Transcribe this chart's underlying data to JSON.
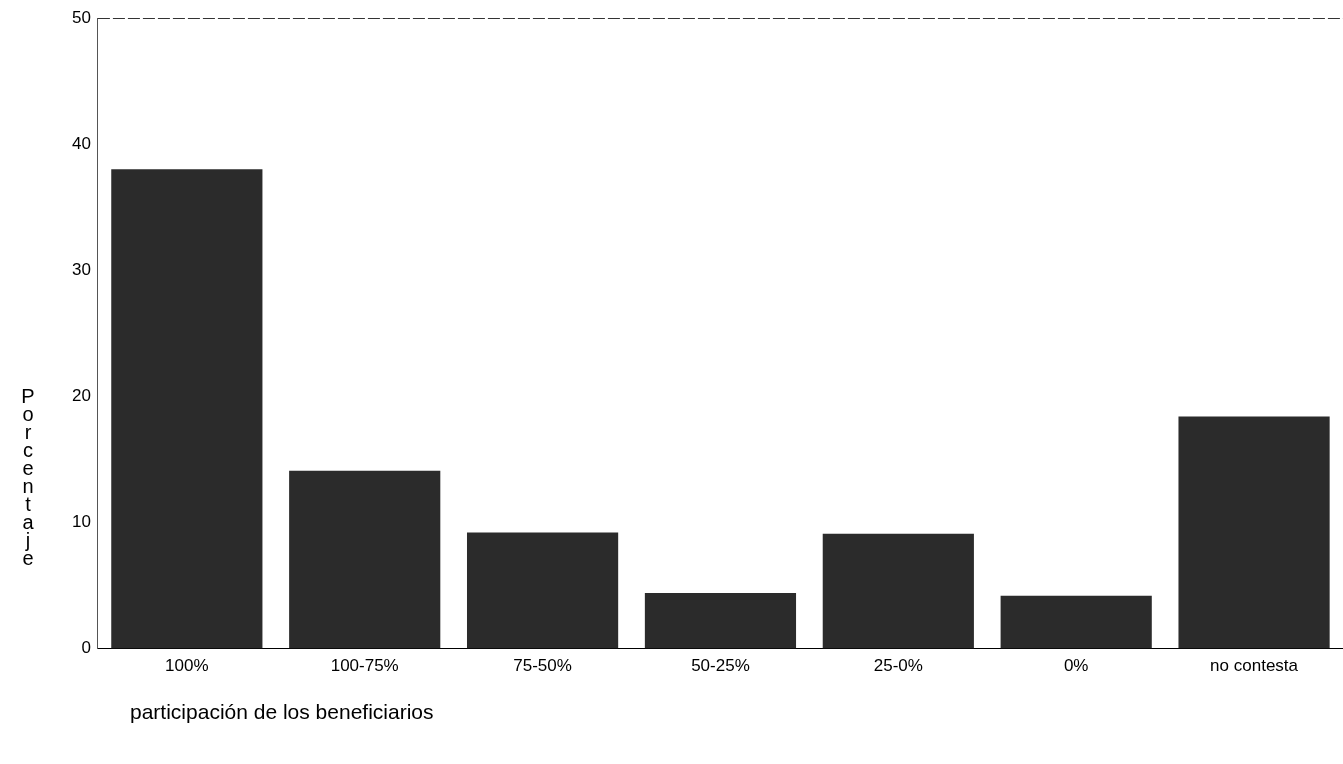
{
  "chart_data": {
    "type": "bar",
    "xlabel": "participación de los beneficiarios",
    "ylabel": "Porcentaje",
    "categories": [
      "100%",
      "100-75%",
      "75-50%",
      "50-25%",
      "25-0%",
      "0%",
      "no contesta"
    ],
    "values": [
      38.0,
      14.1,
      9.2,
      4.4,
      9.1,
      4.2,
      18.4
    ],
    "color": "#2b2b2b",
    "ylim": [
      0,
      50
    ],
    "yticks": [
      0,
      10,
      20,
      30,
      40,
      50
    ],
    "grid": false,
    "legend": false
  }
}
